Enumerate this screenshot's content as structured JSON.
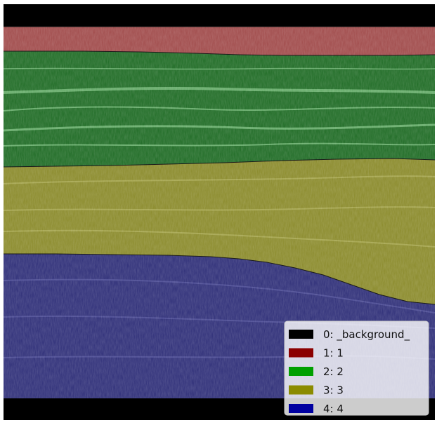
{
  "image": {
    "description_free": true,
    "colors": {
      "background": "#000000",
      "layer_1": "#a04a4a",
      "layer_2": "#1e6b24",
      "layer_3": "#8a8a2a",
      "layer_4": "#2e2e78"
    }
  },
  "legend": {
    "items": [
      {
        "label": "0: _background_",
        "color": "#000000"
      },
      {
        "label": "1: 1",
        "color": "#8b0000"
      },
      {
        "label": "2: 2",
        "color": "#00a000"
      },
      {
        "label": "3: 3",
        "color": "#8b8b00"
      },
      {
        "label": "4: 4",
        "color": "#0000a0"
      }
    ]
  }
}
